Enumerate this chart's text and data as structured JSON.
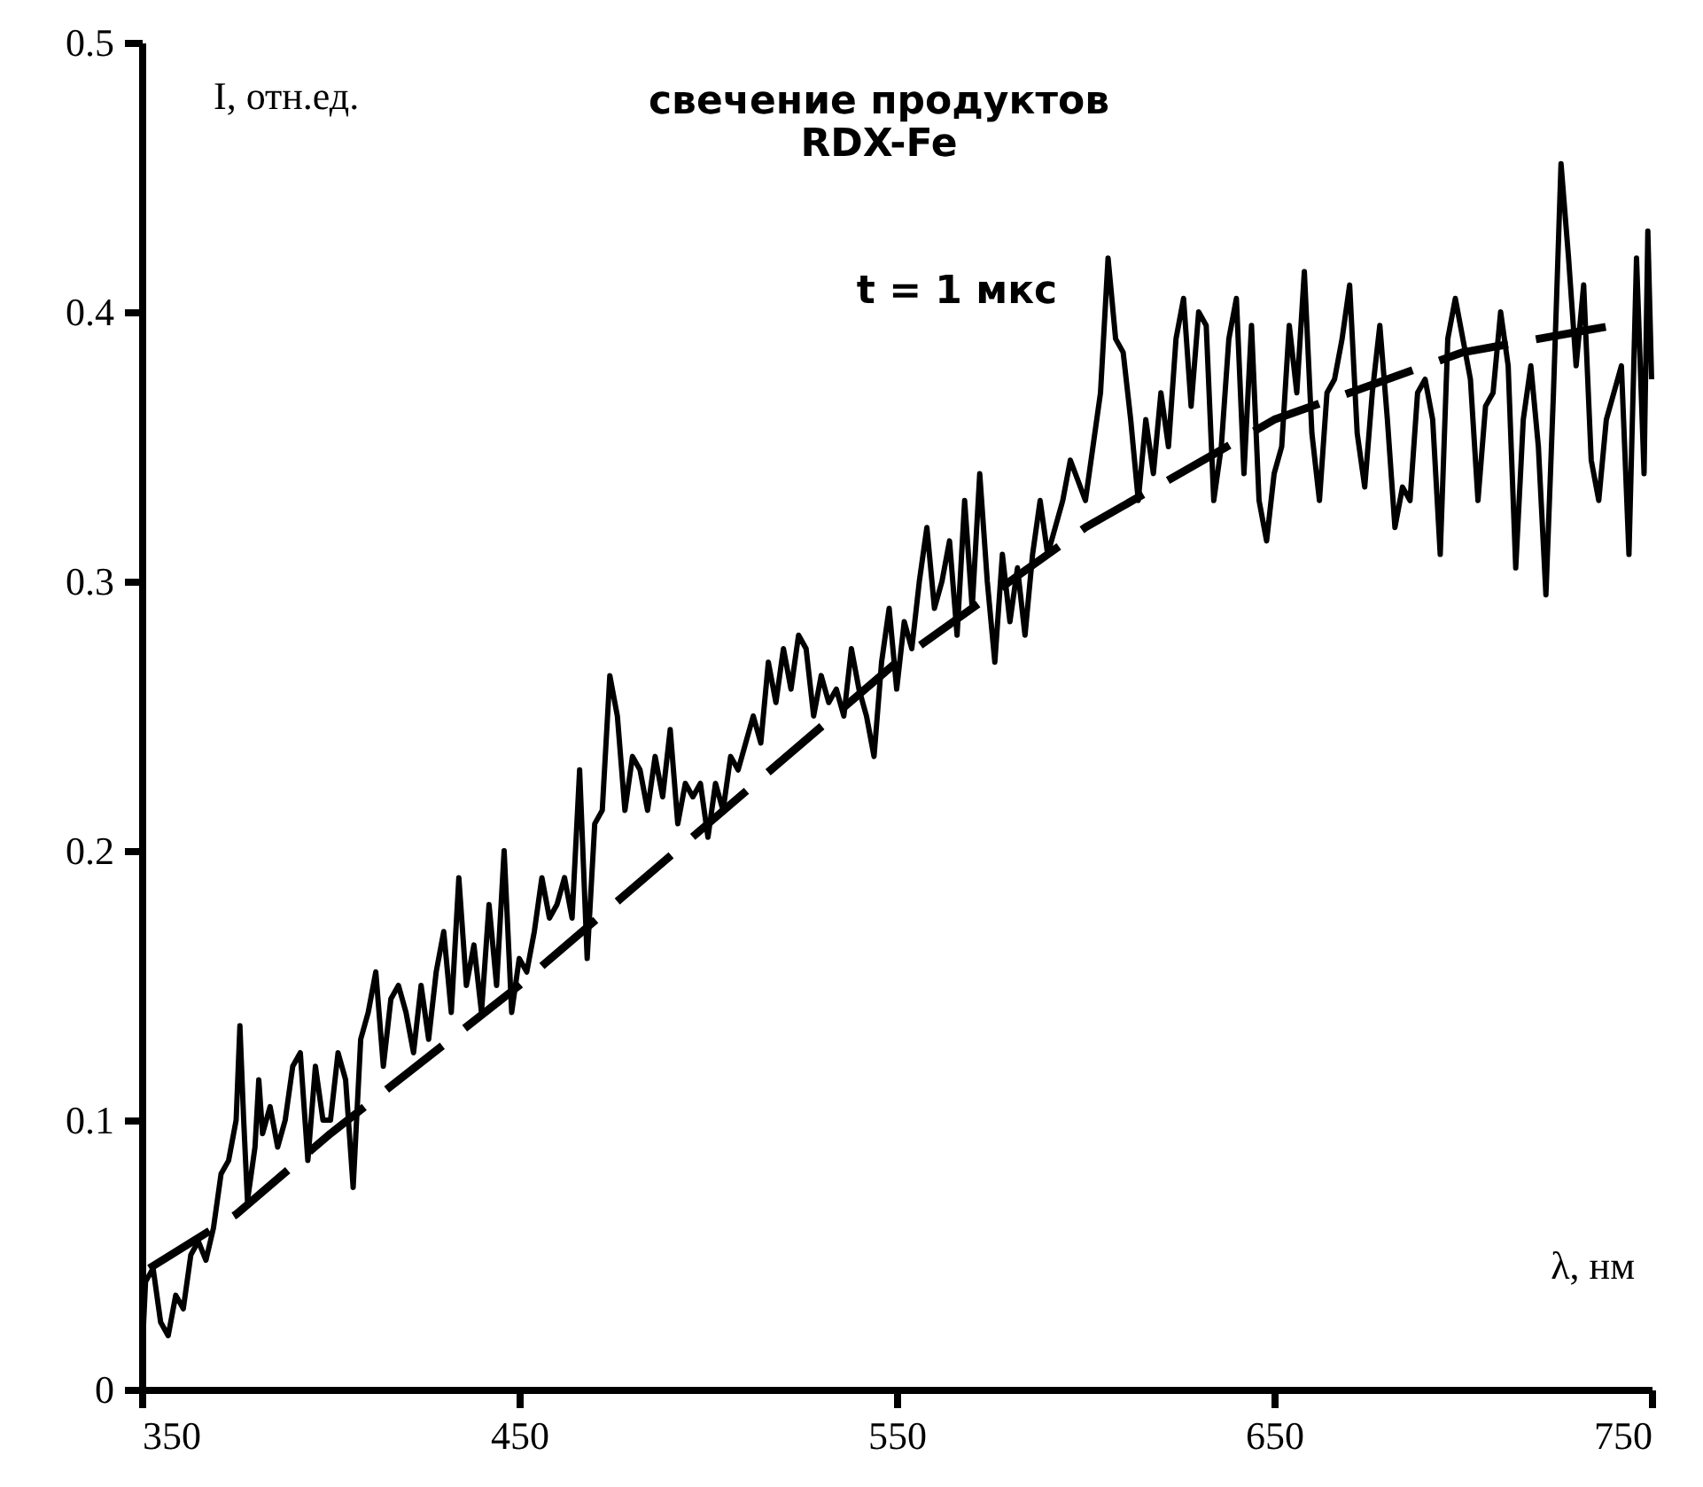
{
  "chart_data": {
    "type": "line",
    "title": [
      "свечение продуктов",
      "RDX-Fe"
    ],
    "xlabel": "λ, нм",
    "ylabel": "I, отн.ед.",
    "annotations": [
      "t = 1 мкс"
    ],
    "xlim": [
      350,
      750
    ],
    "ylim": [
      0,
      0.5
    ],
    "xticks": [
      350,
      450,
      550,
      650,
      750
    ],
    "yticks": [
      0,
      0.1,
      0.2,
      0.3,
      0.4,
      0.5
    ],
    "grid": false,
    "marker": "none",
    "series": [
      {
        "color": "#000000",
        "line_style": "solid",
        "x": [
          350,
          351,
          353,
          355,
          357,
          359,
          361,
          363,
          365,
          367,
          369,
          371,
          373,
          375,
          376,
          377,
          378,
          380,
          381,
          382,
          384,
          386,
          388,
          390,
          392,
          394,
          396,
          398,
          400,
          402,
          404,
          406,
          408,
          410,
          412,
          414,
          416,
          418,
          420,
          422,
          424,
          426,
          428,
          430,
          432,
          434,
          436,
          438,
          440,
          442,
          444,
          446,
          448,
          450,
          452,
          454,
          456,
          458,
          460,
          462,
          464,
          466,
          468,
          470,
          472,
          474,
          476,
          478,
          480,
          482,
          484,
          486,
          488,
          490,
          492,
          494,
          496,
          498,
          500,
          502,
          504,
          506,
          508,
          510,
          512,
          514,
          516,
          518,
          520,
          522,
          524,
          526,
          528,
          530,
          532,
          534,
          536,
          538,
          540,
          542,
          544,
          546,
          548,
          550,
          552,
          554,
          556,
          558,
          560,
          562,
          564,
          566,
          568,
          570,
          572,
          574,
          576,
          578,
          580,
          582,
          584,
          586,
          588,
          590,
          592,
          594,
          596,
          600,
          602,
          604,
          606,
          608,
          610,
          612,
          614,
          616,
          618,
          620,
          622,
          624,
          626,
          628,
          630,
          632,
          634,
          636,
          638,
          640,
          642,
          644,
          646,
          648,
          650,
          652,
          654,
          656,
          658,
          660,
          662,
          664,
          666,
          668,
          670,
          672,
          674,
          676,
          678,
          680,
          682,
          684,
          686,
          688,
          690,
          692,
          694,
          696,
          698,
          700,
          702,
          704,
          706,
          708,
          710,
          712,
          714,
          716,
          718,
          720,
          722,
          724,
          726,
          728,
          730,
          732,
          734,
          736,
          738,
          740,
          742,
          744,
          746,
          748,
          749,
          750
        ],
        "values": [
          0.01,
          0.04,
          0.045,
          0.025,
          0.02,
          0.035,
          0.03,
          0.05,
          0.055,
          0.048,
          0.06,
          0.08,
          0.085,
          0.1,
          0.135,
          0.1,
          0.07,
          0.09,
          0.115,
          0.095,
          0.105,
          0.09,
          0.1,
          0.12,
          0.125,
          0.085,
          0.12,
          0.1,
          0.1,
          0.125,
          0.115,
          0.075,
          0.13,
          0.14,
          0.155,
          0.12,
          0.145,
          0.15,
          0.14,
          0.125,
          0.15,
          0.13,
          0.155,
          0.17,
          0.14,
          0.19,
          0.15,
          0.165,
          0.14,
          0.18,
          0.15,
          0.2,
          0.14,
          0.16,
          0.155,
          0.17,
          0.19,
          0.175,
          0.18,
          0.19,
          0.175,
          0.23,
          0.16,
          0.21,
          0.215,
          0.265,
          0.25,
          0.215,
          0.235,
          0.23,
          0.215,
          0.235,
          0.22,
          0.245,
          0.21,
          0.225,
          0.22,
          0.225,
          0.205,
          0.225,
          0.215,
          0.235,
          0.23,
          0.24,
          0.25,
          0.24,
          0.27,
          0.255,
          0.275,
          0.26,
          0.28,
          0.275,
          0.25,
          0.265,
          0.255,
          0.26,
          0.25,
          0.275,
          0.26,
          0.25,
          0.235,
          0.27,
          0.29,
          0.26,
          0.285,
          0.275,
          0.3,
          0.32,
          0.29,
          0.3,
          0.315,
          0.28,
          0.33,
          0.29,
          0.34,
          0.3,
          0.27,
          0.31,
          0.285,
          0.305,
          0.28,
          0.31,
          0.33,
          0.31,
          0.32,
          0.33,
          0.345,
          0.33,
          0.35,
          0.37,
          0.42,
          0.39,
          0.385,
          0.36,
          0.33,
          0.36,
          0.34,
          0.37,
          0.35,
          0.39,
          0.405,
          0.365,
          0.4,
          0.395,
          0.33,
          0.35,
          0.39,
          0.405,
          0.34,
          0.395,
          0.33,
          0.315,
          0.34,
          0.35,
          0.395,
          0.37,
          0.415,
          0.355,
          0.33,
          0.37,
          0.375,
          0.39,
          0.41,
          0.355,
          0.335,
          0.37,
          0.395,
          0.36,
          0.32,
          0.335,
          0.33,
          0.37,
          0.375,
          0.36,
          0.31,
          0.39,
          0.405,
          0.39,
          0.375,
          0.33,
          0.365,
          0.37,
          0.4,
          0.38,
          0.305,
          0.36,
          0.38,
          0.35,
          0.295,
          0.37,
          0.455,
          0.42,
          0.38,
          0.41,
          0.345,
          0.33,
          0.36,
          0.37,
          0.38,
          0.31,
          0.42,
          0.34,
          0.43,
          0.375
        ]
      },
      {
        "color": "#000000",
        "line_style": "dashed",
        "x": [
          352,
          375,
          400,
          450,
          500,
          550,
          600,
          650,
          700,
          740
        ],
        "values": [
          0.045,
          0.065,
          0.095,
          0.15,
          0.21,
          0.27,
          0.32,
          0.36,
          0.385,
          0.395
        ]
      }
    ]
  }
}
